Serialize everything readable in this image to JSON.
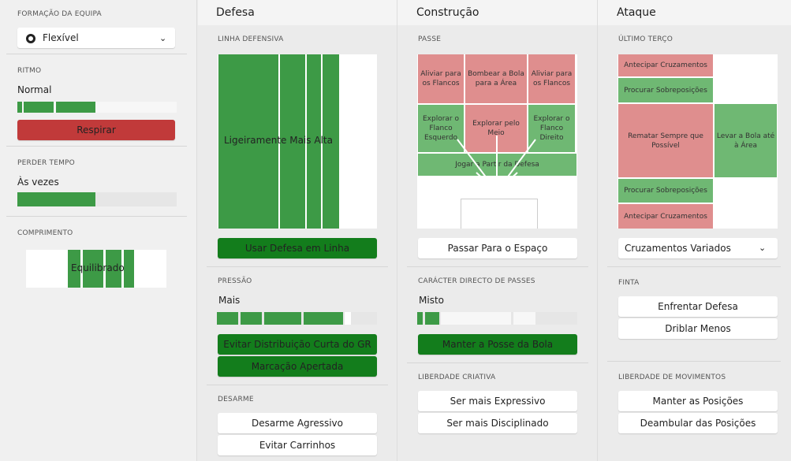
{
  "sidebar": {
    "formation": {
      "label": "FORMAÇÃO DA EQUIPA",
      "value": "Flexível"
    },
    "tempo": {
      "label": "RITMO",
      "value": "Normal",
      "button": "Respirar"
    },
    "time_wasting": {
      "label": "PERDER TEMPO",
      "value": "Às vezes"
    },
    "length": {
      "label": "COMPRIMENTO",
      "value": "Equilibrado"
    }
  },
  "defence": {
    "title": "Defesa",
    "line": {
      "label": "LINHA DEFENSIVA",
      "pitch_label": "Ligeiramente Mais Alta",
      "button": "Usar Defesa em Linha"
    },
    "pressing": {
      "label": "PRESSÃO",
      "value": "Mais",
      "buttons": [
        "Evitar Distribuição Curta do GR",
        "Marcação Apertada"
      ]
    },
    "tackling": {
      "label": "DESARME",
      "buttons": [
        "Desarme Agressivo",
        "Evitar Carrinhos"
      ]
    }
  },
  "build_up": {
    "title": "Construção",
    "passing": {
      "label": "PASSE",
      "zones": [
        "Aliviar para os Flancos",
        "Bombear a Bola para a Área",
        "Aliviar para os Flancos",
        "Explorar o Flanco Esquerdo",
        "Explorar pelo Meio",
        "Explorar o Flanco Direito",
        "Jogar a Partir da Defesa"
      ],
      "button": "Passar Para o Espaço"
    },
    "directness": {
      "label": "CARÁCTER DIRECTO DE PASSES",
      "value": "Misto",
      "button": "Manter a Posse da Bola"
    },
    "creative": {
      "label": "LIBERDADE CRIATIVA",
      "buttons": [
        "Ser mais Expressivo",
        "Ser mais Disciplinado"
      ]
    }
  },
  "attack": {
    "title": "Ataque",
    "final_third": {
      "label": "ÚLTIMO TERÇO",
      "zones": [
        "Antecipar Cruzamentos",
        "Procurar Sobreposições",
        "Rematar Sempre que Possível",
        "Levar a Bola até à Área",
        "Procurar Sobreposições",
        "Antecipar Cruzamentos"
      ],
      "dropdown": "Cruzamentos Variados"
    },
    "dribbling": {
      "label": "FINTA",
      "buttons": [
        "Enfrentar Defesa",
        "Driblar Menos"
      ]
    },
    "movement": {
      "label": "LIBERDADE DE MOVIMENTOS",
      "buttons": [
        "Manter as Posições",
        "Deambular das Posições"
      ]
    }
  }
}
